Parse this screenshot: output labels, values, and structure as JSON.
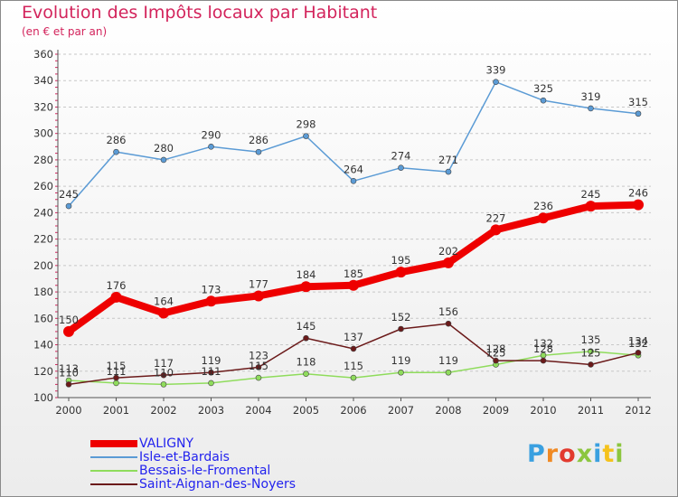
{
  "title": "Evolution des Impôts locaux par Habitant",
  "subtitle": "(en € et par an)",
  "logo": {
    "text": "Proxiti",
    "colors": [
      "#3aa0e0",
      "#f08a24",
      "#e23a2e",
      "#8cc63f",
      "#3aa0e0",
      "#f5c21c",
      "#8cc63f"
    ]
  },
  "chart_data": {
    "type": "line",
    "title": "Evolution des Impôts locaux par Habitant",
    "subtitle": "(en € et par an)",
    "xlabel": "",
    "ylabel": "",
    "x": [
      "2000",
      "2001",
      "2002",
      "2003",
      "2004",
      "2005",
      "2006",
      "2007",
      "2008",
      "2009",
      "2010",
      "2011",
      "2012"
    ],
    "ylim": [
      100,
      360
    ],
    "yticks": [
      100,
      120,
      140,
      160,
      180,
      200,
      220,
      240,
      260,
      280,
      300,
      320,
      340,
      360
    ],
    "grid": "horizontal dashed",
    "legend_position": "bottom-left",
    "series": [
      {
        "name": "VALIGNY",
        "color": "#ee0000",
        "values": [
          150,
          176,
          164,
          173,
          177,
          184,
          185,
          195,
          202,
          227,
          236,
          245,
          246
        ]
      },
      {
        "name": "Isle-et-Bardais",
        "color": "#5b9bd5",
        "values": [
          245,
          286,
          280,
          290,
          286,
          298,
          264,
          274,
          271,
          339,
          325,
          319,
          315
        ]
      },
      {
        "name": "Bessais-le-Fromental",
        "color": "#8fdc5c",
        "values": [
          113,
          111,
          110,
          111,
          115,
          118,
          115,
          119,
          119,
          125,
          132,
          135,
          132
        ]
      },
      {
        "name": "Saint-Aignan-des-Noyers",
        "color": "#6b1a1a",
        "values": [
          110,
          115,
          117,
          119,
          123,
          145,
          137,
          152,
          156,
          128,
          128,
          125,
          134
        ]
      }
    ]
  }
}
